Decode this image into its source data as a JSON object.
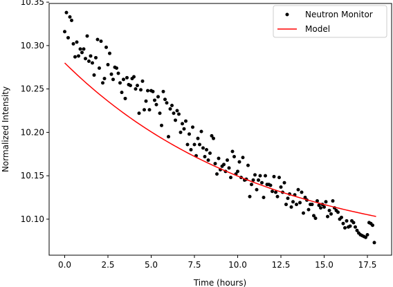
{
  "chart_data": {
    "type": "scatter",
    "xlabel": "Time (hours)",
    "ylabel": "Normalized Intensity",
    "xlim": [
      -0.9,
      18.9
    ],
    "ylim": [
      10.0585,
      10.3485
    ],
    "xticks": [
      0.0,
      2.5,
      5.0,
      7.5,
      10.0,
      12.5,
      15.0,
      17.5
    ],
    "xtick_labels": [
      "0.0",
      "2.5",
      "5.0",
      "7.5",
      "10.0",
      "12.5",
      "15.0",
      "17.5"
    ],
    "yticks": [
      10.1,
      10.15,
      10.2,
      10.25,
      10.3,
      10.35
    ],
    "ytick_labels": [
      "10.10",
      "10.15",
      "10.20",
      "10.25",
      "10.30",
      "10.35"
    ],
    "grid": false,
    "legend": {
      "placement": "top-right"
    },
    "series": [
      {
        "name": "Neutron Monitor",
        "kind": "scatter",
        "color": "#000000",
        "points": [
          [
            0.0,
            10.316
          ],
          [
            0.1,
            10.338
          ],
          [
            0.2,
            10.309
          ],
          [
            0.3,
            10.333
          ],
          [
            0.4,
            10.329
          ],
          [
            0.5,
            10.302
          ],
          [
            0.6,
            10.287
          ],
          [
            0.7,
            10.304
          ],
          [
            0.8,
            10.288
          ],
          [
            0.9,
            10.296
          ],
          [
            1.0,
            10.292
          ],
          [
            1.1,
            10.296
          ],
          [
            1.2,
            10.285
          ],
          [
            1.3,
            10.311
          ],
          [
            1.4,
            10.282
          ],
          [
            1.5,
            10.288
          ],
          [
            1.6,
            10.28
          ],
          [
            1.7,
            10.266
          ],
          [
            1.8,
            10.286
          ],
          [
            1.9,
            10.307
          ],
          [
            2.0,
            10.274
          ],
          [
            2.1,
            10.305
          ],
          [
            2.2,
            10.257
          ],
          [
            2.3,
            10.262
          ],
          [
            2.4,
            10.298
          ],
          [
            2.5,
            10.278
          ],
          [
            2.6,
            10.291
          ],
          [
            2.7,
            10.267
          ],
          [
            2.8,
            10.261
          ],
          [
            2.9,
            10.275
          ],
          [
            3.0,
            10.274
          ],
          [
            3.1,
            10.268
          ],
          [
            3.2,
            10.257
          ],
          [
            3.3,
            10.246
          ],
          [
            3.4,
            10.261
          ],
          [
            3.5,
            10.239
          ],
          [
            3.6,
            10.263
          ],
          [
            3.7,
            10.255
          ],
          [
            3.8,
            10.254
          ],
          [
            3.9,
            10.262
          ],
          [
            4.0,
            10.264
          ],
          [
            4.1,
            10.25
          ],
          [
            4.2,
            10.254
          ],
          [
            4.3,
            10.222
          ],
          [
            4.4,
            10.249
          ],
          [
            4.5,
            10.259
          ],
          [
            4.6,
            10.226
          ],
          [
            4.7,
            10.236
          ],
          [
            4.8,
            10.248
          ],
          [
            4.9,
            10.226
          ],
          [
            5.0,
            10.248
          ],
          [
            5.1,
            10.247
          ],
          [
            5.2,
            10.237
          ],
          [
            5.3,
            10.232
          ],
          [
            5.4,
            10.241
          ],
          [
            5.5,
            10.222
          ],
          [
            5.6,
            10.208
          ],
          [
            5.7,
            10.247
          ],
          [
            5.8,
            10.238
          ],
          [
            5.9,
            10.234
          ],
          [
            6.0,
            10.195
          ],
          [
            6.1,
            10.227
          ],
          [
            6.2,
            10.231
          ],
          [
            6.3,
            10.222
          ],
          [
            6.4,
            10.214
          ],
          [
            6.5,
            10.225
          ],
          [
            6.6,
            10.221
          ],
          [
            6.7,
            10.2
          ],
          [
            6.8,
            10.21
          ],
          [
            6.9,
            10.204
          ],
          [
            7.0,
            10.213
          ],
          [
            7.1,
            10.186
          ],
          [
            7.2,
            10.198
          ],
          [
            7.3,
            10.18
          ],
          [
            7.4,
            10.206
          ],
          [
            7.5,
            10.186
          ],
          [
            7.6,
            10.173
          ],
          [
            7.7,
            10.193
          ],
          [
            7.8,
            10.186
          ],
          [
            7.9,
            10.201
          ],
          [
            8.0,
            10.182
          ],
          [
            8.1,
            10.172
          ],
          [
            8.2,
            10.18
          ],
          [
            8.3,
            10.168
          ],
          [
            8.4,
            10.176
          ],
          [
            8.5,
            10.196
          ],
          [
            8.6,
            10.193
          ],
          [
            8.7,
            10.164
          ],
          [
            8.8,
            10.152
          ],
          [
            8.9,
            10.17
          ],
          [
            9.0,
            10.157
          ],
          [
            9.1,
            10.161
          ],
          [
            9.2,
            10.163
          ],
          [
            9.3,
            10.155
          ],
          [
            9.4,
            10.168
          ],
          [
            9.5,
            10.159
          ],
          [
            9.6,
            10.148
          ],
          [
            9.7,
            10.178
          ],
          [
            9.8,
            10.172
          ],
          [
            9.9,
            10.152
          ],
          [
            10.0,
            10.155
          ],
          [
            10.1,
            10.166
          ],
          [
            10.2,
            10.148
          ],
          [
            10.3,
            10.171
          ],
          [
            10.4,
            10.145
          ],
          [
            10.5,
            10.146
          ],
          [
            10.6,
            10.162
          ],
          [
            10.7,
            10.126
          ],
          [
            10.8,
            10.14
          ],
          [
            10.9,
            10.145
          ],
          [
            11.0,
            10.151
          ],
          [
            11.1,
            10.134
          ],
          [
            11.2,
            10.145
          ],
          [
            11.3,
            10.15
          ],
          [
            11.4,
            10.142
          ],
          [
            11.5,
            10.125
          ],
          [
            11.6,
            10.15
          ],
          [
            11.7,
            10.14
          ],
          [
            11.8,
            10.14
          ],
          [
            11.9,
            10.139
          ],
          [
            12.0,
            10.132
          ],
          [
            12.1,
            10.149
          ],
          [
            12.2,
            10.131
          ],
          [
            12.3,
            10.126
          ],
          [
            12.4,
            10.148
          ],
          [
            12.5,
            10.137
          ],
          [
            12.6,
            10.131
          ],
          [
            12.7,
            10.142
          ],
          [
            12.8,
            10.117
          ],
          [
            12.9,
            10.124
          ],
          [
            13.0,
            10.129
          ],
          [
            13.1,
            10.114
          ],
          [
            13.2,
            10.12
          ],
          [
            13.3,
            10.128
          ],
          [
            13.4,
            10.117
          ],
          [
            13.5,
            10.134
          ],
          [
            13.6,
            10.119
          ],
          [
            13.7,
            10.131
          ],
          [
            13.8,
            10.107
          ],
          [
            13.9,
            10.125
          ],
          [
            14.0,
            10.122
          ],
          [
            14.1,
            10.111
          ],
          [
            14.2,
            10.117
          ],
          [
            14.3,
            10.117
          ],
          [
            14.4,
            10.104
          ],
          [
            14.5,
            10.101
          ],
          [
            14.6,
            10.121
          ],
          [
            14.7,
            10.116
          ],
          [
            14.8,
            10.113
          ],
          [
            14.9,
            10.117
          ],
          [
            15.0,
            10.114
          ],
          [
            15.1,
            10.12
          ],
          [
            15.2,
            10.103
          ],
          [
            15.3,
            10.11
          ],
          [
            15.4,
            10.106
          ],
          [
            15.5,
            10.121
          ],
          [
            15.6,
            10.113
          ],
          [
            15.7,
            10.11
          ],
          [
            15.8,
            10.108
          ],
          [
            15.9,
            10.1
          ],
          [
            16.0,
            10.102
          ],
          [
            16.1,
            10.095
          ],
          [
            16.2,
            10.09
          ],
          [
            16.3,
            10.098
          ],
          [
            16.4,
            10.091
          ],
          [
            16.5,
            10.092
          ],
          [
            16.6,
            10.098
          ],
          [
            16.7,
            10.096
          ],
          [
            16.8,
            10.091
          ],
          [
            16.9,
            10.087
          ],
          [
            17.0,
            10.084
          ],
          [
            17.1,
            10.082
          ],
          [
            17.2,
            10.081
          ],
          [
            17.3,
            10.08
          ],
          [
            17.4,
            10.079
          ],
          [
            17.5,
            10.082
          ],
          [
            17.6,
            10.096
          ],
          [
            17.7,
            10.095
          ],
          [
            17.8,
            10.093
          ],
          [
            17.9,
            10.073
          ]
        ]
      },
      {
        "name": "Model",
        "kind": "line",
        "color": "#ff0000",
        "function": {
          "form": "exponential",
          "a": 10.058,
          "b": 0.222,
          "tau": 11.3
        },
        "x_range": [
          0.0,
          18.0
        ]
      }
    ]
  }
}
